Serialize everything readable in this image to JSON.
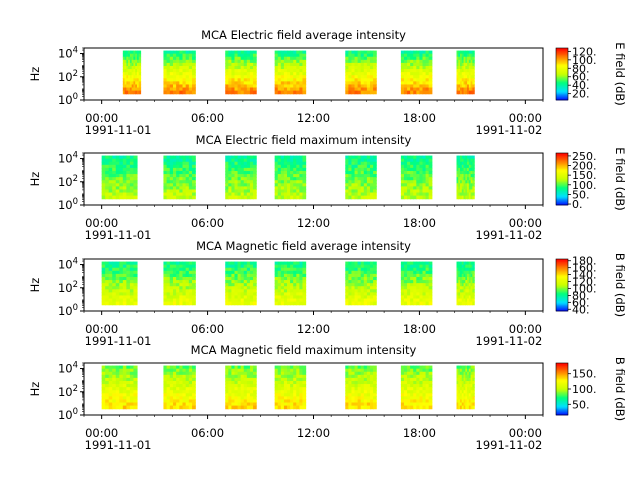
{
  "chart_data": [
    {
      "type": "heatmap",
      "title": "MCA  Electric field average intensity",
      "ylabel": "Hz",
      "colorbar_label": "E field (dB)",
      "colorbar_ticks": [
        "20.",
        "40.",
        "60.",
        "80.",
        "100.",
        "120."
      ],
      "colorbar_tick_values": [
        20,
        40,
        60,
        80,
        100,
        120
      ],
      "colorbar_range": [
        5,
        128
      ],
      "yscale": "log",
      "yticks": [
        {
          "base": "10",
          "exp": "0"
        },
        {
          "base": "10",
          "exp": "2"
        },
        {
          "base": "10",
          "exp": "4"
        }
      ],
      "ylim": [
        1,
        30000
      ],
      "profile": "avg_e",
      "data_bands": [
        [
          1.2,
          2.2
        ],
        [
          3.5,
          5.3
        ],
        [
          7.0,
          8.75
        ],
        [
          9.8,
          11.55
        ],
        [
          13.8,
          15.55
        ],
        [
          16.95,
          18.7
        ],
        [
          20.1,
          21.1
        ]
      ]
    },
    {
      "type": "heatmap",
      "title": "MCA  Electric field maximum intensity",
      "ylabel": "Hz",
      "colorbar_label": "E field (dB)",
      "colorbar_ticks": [
        "0.",
        "50.",
        "100.",
        "150.",
        "200.",
        "250."
      ],
      "colorbar_tick_values": [
        0,
        50,
        100,
        150,
        200,
        250
      ],
      "colorbar_range": [
        -5,
        265
      ],
      "yscale": "log",
      "yticks": [
        {
          "base": "10",
          "exp": "0"
        },
        {
          "base": "10",
          "exp": "2"
        },
        {
          "base": "10",
          "exp": "4"
        }
      ],
      "ylim": [
        1,
        30000
      ],
      "profile": "max_e",
      "data_bands": [
        [
          0.0,
          2.0
        ],
        [
          3.5,
          5.3
        ],
        [
          7.0,
          8.75
        ],
        [
          9.8,
          11.55
        ],
        [
          13.8,
          15.55
        ],
        [
          16.95,
          18.7
        ],
        [
          20.1,
          21.1
        ]
      ]
    },
    {
      "type": "heatmap",
      "title": "MCA  Magnetic field average intensity",
      "ylabel": "Hz",
      "colorbar_label": "B field (dB)",
      "colorbar_ticks": [
        "40.",
        "60.",
        "80.",
        "100.",
        "120.",
        "140.",
        "160.",
        "180."
      ],
      "colorbar_tick_values": [
        40,
        60,
        80,
        100,
        120,
        140,
        160,
        180
      ],
      "colorbar_range": [
        35,
        185
      ],
      "yscale": "log",
      "yticks": [
        {
          "base": "10",
          "exp": "0"
        },
        {
          "base": "10",
          "exp": "2"
        },
        {
          "base": "10",
          "exp": "4"
        }
      ],
      "ylim": [
        1,
        30000
      ],
      "profile": "avg_b",
      "data_bands": [
        [
          0.0,
          2.0
        ],
        [
          3.5,
          5.3
        ],
        [
          7.0,
          8.75
        ],
        [
          9.8,
          11.55
        ],
        [
          13.8,
          15.55
        ],
        [
          16.95,
          18.7
        ],
        [
          20.1,
          21.1
        ]
      ]
    },
    {
      "type": "heatmap",
      "title": "MCA  Magnetic field maximum intensity",
      "ylabel": "Hz",
      "colorbar_label": "B field (dB)",
      "colorbar_ticks": [
        "50.",
        "100.",
        "150."
      ],
      "colorbar_tick_values": [
        50,
        100,
        150
      ],
      "colorbar_range": [
        15,
        185
      ],
      "yscale": "log",
      "yticks": [
        {
          "base": "10",
          "exp": "0"
        },
        {
          "base": "10",
          "exp": "2"
        },
        {
          "base": "10",
          "exp": "4"
        }
      ],
      "ylim": [
        1,
        30000
      ],
      "profile": "max_b",
      "data_bands": [
        [
          0.0,
          2.0
        ],
        [
          3.5,
          5.3
        ],
        [
          7.0,
          8.75
        ],
        [
          9.8,
          11.55
        ],
        [
          13.8,
          15.55
        ],
        [
          16.95,
          18.7
        ],
        [
          20.1,
          21.1
        ]
      ]
    }
  ],
  "xaxis": {
    "range_hours": [
      -1,
      25
    ],
    "ticks": [
      {
        "hour": 0,
        "label": "00:00",
        "date": "1991-11-01"
      },
      {
        "hour": 6,
        "label": "06:00",
        "date": ""
      },
      {
        "hour": 12,
        "label": "12:00",
        "date": ""
      },
      {
        "hour": 18,
        "label": "18:00",
        "date": ""
      },
      {
        "hour": 24,
        "label": "00:00",
        "date": "1991-11-02"
      }
    ]
  },
  "colors": {
    "colormap": [
      "#0000ff",
      "#00e0ff",
      "#00ff80",
      "#c8ff00",
      "#ffff00",
      "#ff8000",
      "#ff0000"
    ]
  }
}
